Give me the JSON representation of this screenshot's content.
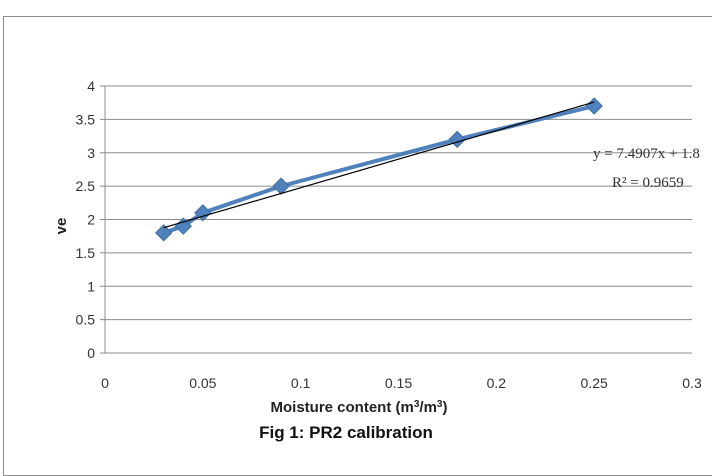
{
  "chart_data": {
    "type": "scatter",
    "title": "",
    "caption": "Fig 1: PR2 calibration",
    "xlabel_main": "Moisture content (m",
    "xlabel_sup1": "3",
    "xlabel_mid": "/m",
    "xlabel_sup2": "3",
    "xlabel_end": ")",
    "ylabel": "ve",
    "xlim": [
      0,
      0.3
    ],
    "ylim": [
      0,
      4
    ],
    "x_ticks": [
      "0",
      "0.05",
      "0.1",
      "0.15",
      "0.2",
      "0.25",
      "0.3"
    ],
    "y_ticks": [
      "0",
      "0.5",
      "1",
      "1.5",
      "2",
      "2.5",
      "3",
      "3.5",
      "4"
    ],
    "grid": "horizontal",
    "series": [
      {
        "x": [
          0.03,
          0.04,
          0.05,
          0.09,
          0.18,
          0.25
        ],
        "y": [
          1.8,
          1.9,
          2.1,
          2.5,
          3.2,
          3.7
        ],
        "color": "#4f81bd",
        "marker": "diamond"
      }
    ],
    "trendline": {
      "equation": "y = 7.4907x + 1.8",
      "r2_label": "R² = 0.9659",
      "slope": 7.4907,
      "intercept": 1.8,
      "color": "#000000"
    }
  }
}
